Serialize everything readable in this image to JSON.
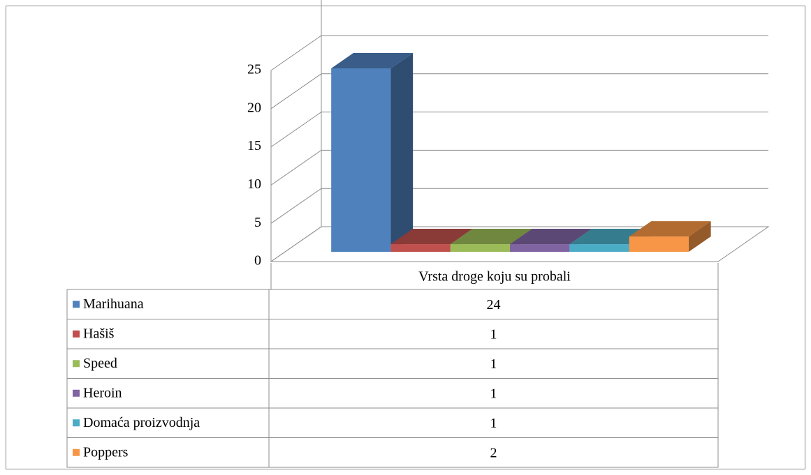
{
  "chart_data": {
    "type": "bar",
    "categories": [
      "Vrsta droge koju su probali"
    ],
    "series": [
      {
        "name": "Marihuana",
        "color": "#4F81BD",
        "values": [
          24
        ]
      },
      {
        "name": "Hašiš",
        "color": "#C0504D",
        "values": [
          1
        ]
      },
      {
        "name": "Speed",
        "color": "#9BBB59",
        "values": [
          1
        ]
      },
      {
        "name": "Heroin",
        "color": "#8064A2",
        "values": [
          1
        ]
      },
      {
        "name": "Domaća proizvodnja",
        "color": "#4BACC6",
        "values": [
          1
        ]
      },
      {
        "name": "Poppers",
        "color": "#F79646",
        "values": [
          2
        ]
      }
    ],
    "ylim": [
      0,
      25
    ],
    "yticks": [
      0,
      5,
      10,
      15,
      20,
      25
    ],
    "grid": true
  }
}
